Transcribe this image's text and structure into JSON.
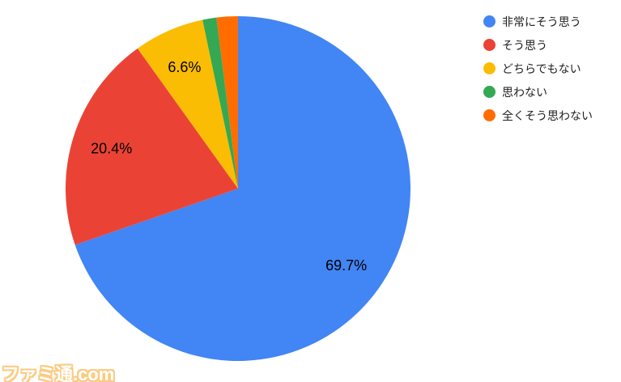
{
  "chart_data": {
    "type": "pie",
    "title": "",
    "legend_position": "top-right",
    "background_color": "#ffffff",
    "label_color": "#000000",
    "legend_text_color": "#1f1f1f",
    "categories": [
      "非常にそう思う",
      "そう思う",
      "どちらでもない",
      "思わない",
      "全くそう思わない"
    ],
    "values": [
      69.7,
      20.4,
      6.6,
      1.3,
      2.0
    ],
    "slices": [
      {
        "label": "非常にそう思う",
        "value": 69.7,
        "display_label": "69.7%",
        "color": "#4285F4"
      },
      {
        "label": "そう思う",
        "value": 20.4,
        "display_label": "20.4%",
        "color": "#EA4335"
      },
      {
        "label": "どちらでもない",
        "value": 6.6,
        "display_label": "6.6%",
        "color": "#FBBC04"
      },
      {
        "label": "思わない",
        "value": 1.3,
        "display_label": "",
        "color": "#34A853"
      },
      {
        "label": "全くそう思わない",
        "value": 2.0,
        "display_label": "",
        "color": "#FF6D00"
      }
    ]
  },
  "watermark": {
    "text": "ファミ通.com"
  }
}
